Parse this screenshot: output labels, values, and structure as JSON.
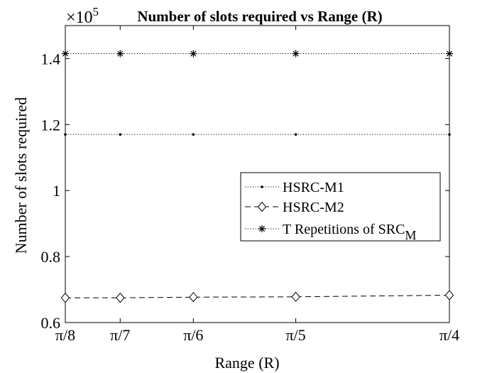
{
  "chart_data": {
    "type": "line",
    "title": "Number of slots required vs Range (R)",
    "exponent_label": "×10",
    "exponent_power": "5",
    "xlabel": "Range (R)",
    "ylabel": "Number of slots required",
    "x_tick_labels": [
      "π/8",
      "π/7",
      "π/6",
      "π/5",
      "π/4"
    ],
    "x_values": [
      0.3927,
      0.4488,
      0.5236,
      0.6283,
      0.7854
    ],
    "xlim": [
      0.3927,
      0.7854
    ],
    "ylim": [
      0.6,
      1.5
    ],
    "y_ticks": [
      0.6,
      0.8,
      1.0,
      1.2,
      1.4
    ],
    "y_tick_labels": [
      "0.6",
      "0.8",
      "1",
      "1.2",
      "1.4"
    ],
    "grid": false,
    "legend_position": "center-right",
    "series": [
      {
        "name": "HSRC-M1",
        "values": [
          1.17,
          1.17,
          1.17,
          1.17,
          1.17
        ],
        "line_style": "dotted",
        "marker": "dot"
      },
      {
        "name": "HSRC-M2",
        "values": [
          0.675,
          0.675,
          0.677,
          0.678,
          0.683
        ],
        "line_style": "dashed",
        "marker": "diamond"
      },
      {
        "name": "T Repetitions of SRC",
        "name_subscript": "M",
        "values": [
          1.415,
          1.415,
          1.415,
          1.415,
          1.415
        ],
        "line_style": "dotted",
        "marker": "asterisk"
      }
    ]
  }
}
